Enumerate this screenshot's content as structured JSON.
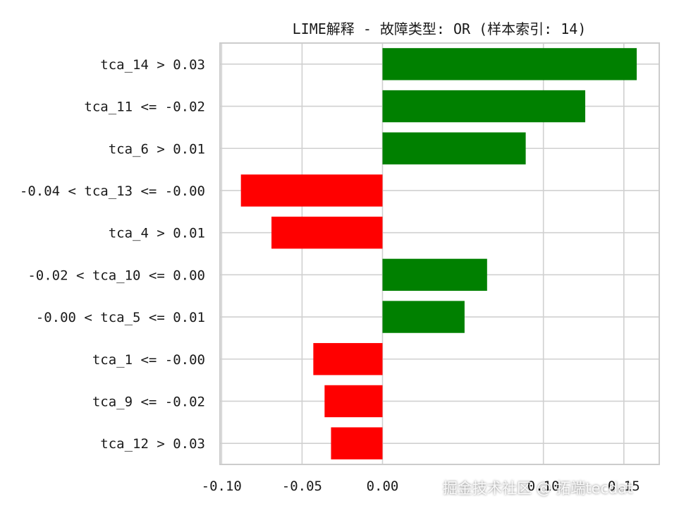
{
  "chart_data": {
    "type": "bar",
    "orientation": "horizontal",
    "title": "LIME解释 - 故障类型: OR (样本索引: 14)",
    "xlabel": "",
    "ylabel": "",
    "xlim": [
      -0.101,
      0.172
    ],
    "xticks": [
      -0.1,
      -0.05,
      0.0,
      0.1,
      0.15
    ],
    "xtick_labels": [
      "-0.10",
      "-0.05",
      "0.00",
      "0.10",
      "0.15"
    ],
    "grid": true,
    "categories": [
      "tca_14 > 0.03",
      "tca_11 <= -0.02",
      "tca_6 > 0.01",
      "-0.04 < tca_13 <= -0.00",
      "tca_4 > 0.01",
      "-0.02 < tca_10 <= 0.00",
      "-0.00 < tca_5 <= 0.01",
      "tca_1 <= -0.00",
      "tca_9 <= -0.02",
      "tca_12 > 0.03"
    ],
    "values": [
      0.158,
      0.126,
      0.089,
      -0.088,
      -0.069,
      0.065,
      0.051,
      -0.043,
      -0.036,
      -0.032
    ],
    "colors": {
      "positive": "#008000",
      "negative": "#ff0000"
    }
  },
  "watermark": "掘金技术社区 @ 拓端tecdat"
}
